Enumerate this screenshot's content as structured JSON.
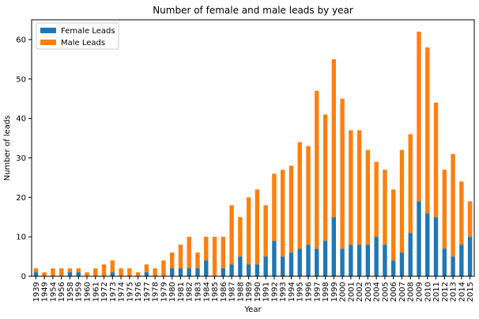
{
  "chart_data": {
    "type": "bar",
    "stacked": true,
    "title": "Number of female and male leads by year",
    "xlabel": "Year",
    "ylabel": "Number of leads",
    "ylim": [
      0,
      65
    ],
    "yticks": [
      0,
      10,
      20,
      30,
      40,
      50,
      60
    ],
    "grid": false,
    "legend_position": "top-left",
    "categories": [
      "1939",
      "1949",
      "1954",
      "1956",
      "1958",
      "1959",
      "1960",
      "1961",
      "1972",
      "1973",
      "1974",
      "1975",
      "1976",
      "1977",
      "1978",
      "1979",
      "1980",
      "1981",
      "1982",
      "1983",
      "1984",
      "1985",
      "1986",
      "1987",
      "1988",
      "1989",
      "1990",
      "1991",
      "1992",
      "1993",
      "1994",
      "1995",
      "1996",
      "1997",
      "1998",
      "1999",
      "2000",
      "2001",
      "2002",
      "2003",
      "2004",
      "2005",
      "2006",
      "2007",
      "2008",
      "2009",
      "2010",
      "2011",
      "2012",
      "2013",
      "2014",
      "2015"
    ],
    "series": [
      {
        "name": "Female Leads",
        "color": "#1f77b4",
        "values": [
          1,
          0,
          0,
          0,
          1,
          1,
          0,
          0,
          0,
          1,
          0,
          0,
          0,
          1,
          0,
          0,
          2,
          2,
          2,
          2,
          4,
          0,
          2,
          3,
          5,
          3,
          3,
          5,
          9,
          5,
          6,
          7,
          8,
          7,
          9,
          15,
          7,
          8,
          8,
          8,
          10,
          8,
          4,
          6,
          11,
          19,
          16,
          15,
          7,
          5,
          8,
          10
        ]
      },
      {
        "name": "Male Leads",
        "color": "#ff7f0e",
        "values": [
          1,
          1,
          2,
          2,
          1,
          1,
          1,
          2,
          3,
          3,
          2,
          2,
          1,
          2,
          2,
          4,
          4,
          6,
          8,
          4,
          6,
          10,
          8,
          15,
          10,
          17,
          19,
          13,
          17,
          22,
          22,
          27,
          25,
          40,
          32,
          40,
          38,
          29,
          29,
          24,
          19,
          19,
          18,
          26,
          25,
          43,
          42,
          29,
          20,
          26,
          16,
          9
        ]
      }
    ]
  }
}
